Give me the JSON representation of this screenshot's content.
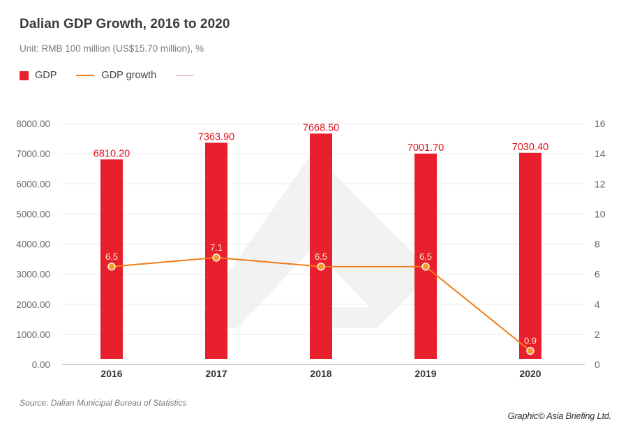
{
  "header": {
    "title": "Dalian GDP Growth, 2016 to 2020",
    "subtitle": "Unit: RMB 100 million (US$15.70 million), %"
  },
  "legend": [
    {
      "label": "GDP",
      "type": "box",
      "color": "#e8202e"
    },
    {
      "label": "GDP growth",
      "type": "line",
      "color": "#f07d1a"
    },
    {
      "label": "",
      "type": "line",
      "color": "#f9c6cb"
    }
  ],
  "footer": {
    "source": "Source: Dalian Municipal Bureau of Statistics",
    "credit": "Graphic© Asia Briefing Ltd."
  },
  "colors": {
    "bar": "#e8202e",
    "bar_label": "#e3101f",
    "line": "#f07d1a",
    "point": "#f39a2e",
    "point_label": "#fde8c8",
    "grid": "#e8e8e8",
    "axis_tick": "#666666",
    "category_label": "#333333",
    "watermark": "#f2f2f2"
  },
  "chart_data": {
    "type": "bar",
    "title": "Dalian GDP Growth, 2016 to 2020",
    "subtitle": "Unit: RMB 100 million (US$15.70 million), %",
    "xlabel": "",
    "ylabel": "",
    "y2label": "",
    "categories": [
      "2016",
      "2017",
      "2018",
      "2019",
      "2020"
    ],
    "series": [
      {
        "name": "GDP",
        "type": "bar",
        "axis": "left",
        "values": [
          6810.2,
          7363.9,
          7668.5,
          7001.7,
          7030.4
        ],
        "labels": [
          "6810.20",
          "7363.90",
          "7668.50",
          "7001.70",
          "7030.40"
        ]
      },
      {
        "name": "GDP growth",
        "type": "line",
        "axis": "right",
        "values": [
          6.5,
          7.1,
          6.5,
          6.5,
          0.9
        ],
        "labels": [
          "6.5",
          "7.1",
          "6.5",
          "6.5",
          "0.9"
        ]
      }
    ],
    "ylim": [
      0,
      8000
    ],
    "yticks": [
      "0.00",
      "1000.00",
      "2000.00",
      "3000.00",
      "4000.00",
      "5000.00",
      "6000.00",
      "7000.00",
      "8000.00"
    ],
    "y2lim": [
      0,
      16
    ],
    "y2ticks": [
      "0",
      "2",
      "4",
      "6",
      "8",
      "10",
      "12",
      "14",
      "16"
    ],
    "grid": true,
    "legend_position": "top-left"
  }
}
